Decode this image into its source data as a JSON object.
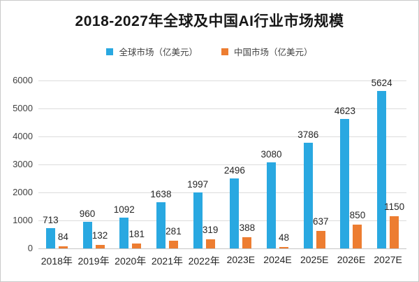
{
  "title": "2018-2027年全球及中国AI行业市场规模",
  "legend": {
    "items": [
      {
        "label": "全球市场（亿美元）",
        "color": "#29a8e1"
      },
      {
        "label": "中国市场（亿美元）",
        "color": "#ed7d31"
      }
    ]
  },
  "chart_data": {
    "type": "bar",
    "title": "2018-2027年全球及中国AI行业市场规模",
    "categories": [
      "2018年",
      "2019年",
      "2020年",
      "2021年",
      "2022年",
      "2023E",
      "2024E",
      "2025E",
      "2026E",
      "2027E"
    ],
    "series": [
      {
        "name": "全球市场（亿美元）",
        "color": "#29a8e1",
        "values": [
          713,
          960,
          1092,
          1638,
          1997,
          2496,
          3080,
          3786,
          4623,
          5624
        ]
      },
      {
        "name": "中国市场（亿美元）",
        "color": "#ed7d31",
        "values": [
          84,
          132,
          181,
          281,
          319,
          388,
          48,
          637,
          850,
          1150
        ]
      }
    ],
    "xlabel": "",
    "ylabel": "",
    "ylim": [
      0,
      6000
    ],
    "yticks": [
      0,
      1000,
      2000,
      3000,
      4000,
      5000,
      6000
    ],
    "grid": true,
    "legend_position": "top",
    "gridline_color": "#dcdcdc",
    "axis_line_color": "#c6c6c6",
    "tick_label_color": "#404040",
    "value_label_color": "#262626",
    "background_color": "#ffffff",
    "border_color": "#c9c9c9"
  }
}
